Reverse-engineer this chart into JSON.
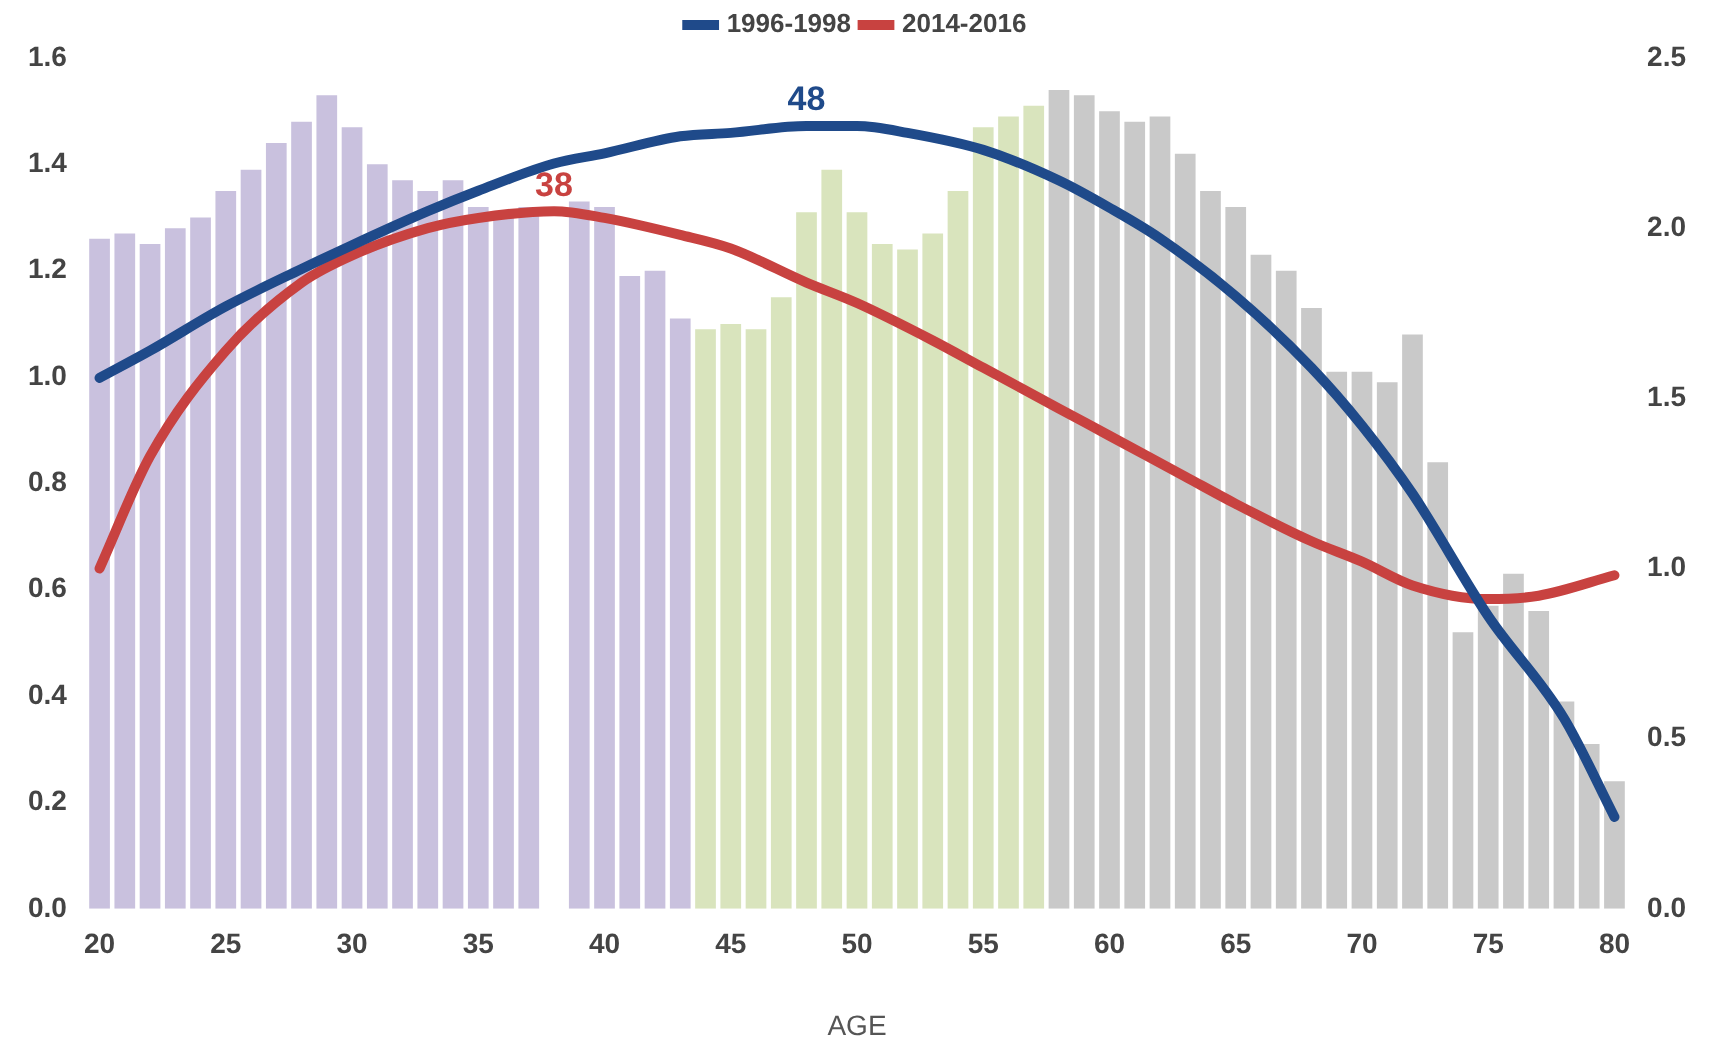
{
  "chart_data": {
    "type": "bar",
    "xlabel": "AGE",
    "legend": "top",
    "marker": "none",
    "line_style": "solid",
    "grid": false,
    "xlim": [
      19.5,
      80.5
    ],
    "xticks": [
      20,
      25,
      30,
      35,
      40,
      45,
      50,
      55,
      60,
      65,
      70,
      75,
      80
    ],
    "ylim": [
      0,
      1.6
    ],
    "yticks": [
      {
        "value": 0,
        "label": "0.0"
      },
      0.2,
      0.4,
      0.6,
      0.8,
      {
        "value": 1,
        "label": "1.0"
      },
      1.2,
      1.4,
      1.6
    ],
    "y2lim": [
      0,
      2.5
    ],
    "y2ticks": [
      {
        "value": 0,
        "label": "0.0"
      },
      0.5,
      {
        "value": 1,
        "label": "1.0"
      },
      1.5,
      {
        "value": 2,
        "label": "2.0"
      },
      2.5
    ],
    "annotations": [
      "48",
      "38"
    ],
    "series": [
      {
        "x": [
          20,
          21,
          22,
          23,
          24,
          25,
          26,
          27,
          28,
          29,
          30,
          31,
          32,
          33,
          34,
          35,
          36,
          37,
          38,
          39,
          40,
          41,
          42,
          43,
          44,
          45,
          46,
          47,
          48,
          49,
          50,
          51,
          52,
          53,
          54,
          55,
          56,
          57,
          58,
          59,
          60,
          61,
          62,
          63,
          64,
          65,
          66,
          67,
          68,
          69,
          70,
          71,
          72,
          73,
          74,
          75,
          76,
          77,
          78,
          79,
          80
        ],
        "values": [
          1.26,
          1.27,
          1.25,
          1.28,
          1.3,
          1.35,
          1.39,
          1.44,
          1.48,
          1.53,
          1.47,
          1.4,
          1.37,
          1.35,
          1.37,
          1.32,
          1.31,
          1.32,
          null,
          1.33,
          1.32,
          1.19,
          1.2,
          1.11,
          1.09,
          1.1,
          1.09,
          1.15,
          1.31,
          1.39,
          1.31,
          1.25,
          1.24,
          1.27,
          1.35,
          1.47,
          1.49,
          1.51,
          1.54,
          1.53,
          1.5,
          1.48,
          1.49,
          1.42,
          1.35,
          1.32,
          1.23,
          1.2,
          1.13,
          1.01,
          1.01,
          0.99,
          1.08,
          0.84,
          0.52,
          0.57,
          0.63,
          0.56,
          0.39,
          0.31,
          0.24
        ],
        "colors": [
          "#c9c1de",
          "#c9c1de",
          "#c9c1de",
          "#c9c1de",
          "#c9c1de",
          "#c9c1de",
          "#c9c1de",
          "#c9c1de",
          "#c9c1de",
          "#c9c1de",
          "#c9c1de",
          "#c9c1de",
          "#c9c1de",
          "#c9c1de",
          "#c9c1de",
          "#c9c1de",
          "#c9c1de",
          "#c9c1de",
          "#c9c1de",
          "#c9c1de",
          "#c9c1de",
          "#c9c1de",
          "#c9c1de",
          "#c9c1de",
          "#d9e4bd",
          "#d9e4bd",
          "#d9e4bd",
          "#d9e4bd",
          "#d9e4bd",
          "#d9e4bd",
          "#d9e4bd",
          "#d9e4bd",
          "#d9e4bd",
          "#d9e4bd",
          "#d9e4bd",
          "#d9e4bd",
          "#d9e4bd",
          "#d9e4bd",
          "#c9c9c9",
          "#c9c9c9",
          "#c9c9c9",
          "#c9c9c9",
          "#c9c9c9",
          "#c9c9c9",
          "#c9c9c9",
          "#c9c9c9",
          "#c9c9c9",
          "#c9c9c9",
          "#c9c9c9",
          "#c9c9c9",
          "#c9c9c9",
          "#c9c9c9",
          "#c9c9c9",
          "#c9c9c9",
          "#c9c9c9",
          "#c9c9c9",
          "#c9c9c9",
          "#c9c9c9",
          "#c9c9c9",
          "#c9c9c9",
          "#c9c9c9"
        ]
      },
      {
        "type": "line",
        "name": "1996-1998",
        "color": "#1f4a8a",
        "axis": "y2",
        "x": [
          20,
          22,
          25,
          28,
          30,
          33,
          35,
          38,
          40,
          43,
          45,
          48,
          50,
          52,
          55,
          58,
          60,
          62,
          65,
          68,
          70,
          72,
          75,
          78,
          80
        ],
        "values": [
          1.56,
          1.64,
          1.77,
          1.88,
          1.95,
          2.05,
          2.11,
          2.19,
          2.22,
          2.27,
          2.28,
          2.3,
          2.3,
          2.28,
          2.23,
          2.14,
          2.06,
          1.97,
          1.8,
          1.59,
          1.42,
          1.22,
          0.86,
          0.56,
          0.27
        ]
      },
      {
        "type": "line",
        "name": "2014-2016",
        "color": "#c84240",
        "axis": "y2",
        "x": [
          20,
          22,
          25,
          28,
          30,
          33,
          35,
          38,
          40,
          43,
          45,
          48,
          50,
          53,
          55,
          58,
          60,
          63,
          65,
          68,
          70,
          72,
          75,
          77,
          80
        ],
        "values": [
          1.0,
          1.33,
          1.64,
          1.84,
          1.92,
          2.0,
          2.03,
          2.05,
          2.03,
          1.98,
          1.94,
          1.84,
          1.78,
          1.67,
          1.59,
          1.47,
          1.39,
          1.27,
          1.19,
          1.08,
          1.02,
          0.95,
          0.91,
          0.92,
          0.98
        ]
      }
    ]
  }
}
